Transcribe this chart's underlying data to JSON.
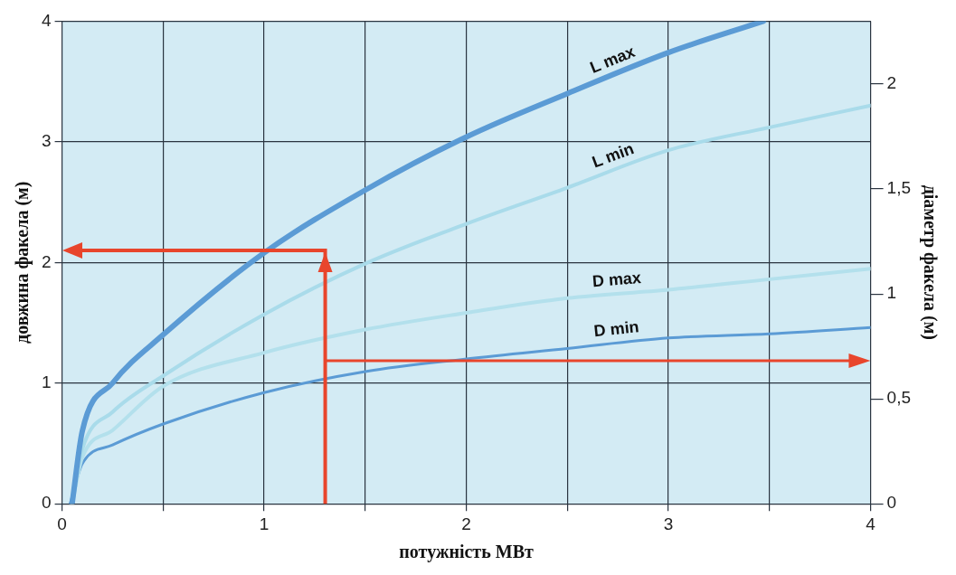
{
  "chart_data": {
    "type": "line",
    "xlabel": "потужність МВт",
    "ylabel": "довжина факела (м)",
    "y2label": "діаметр факела (м)",
    "xlim": [
      0,
      4
    ],
    "xticks": [
      0,
      {
        "value": 0.5,
        "label": null
      },
      1,
      {
        "value": 1.5,
        "label": null
      },
      2,
      {
        "value": 2.5,
        "label": null
      },
      3,
      {
        "value": 3.5,
        "label": null
      },
      4
    ],
    "ylim": [
      0,
      4
    ],
    "yticks": [
      0,
      1,
      2,
      3,
      4
    ],
    "y2lim": [
      0,
      2.3
    ],
    "y2ticks": [
      0,
      {
        "value": 0.5,
        "label": "0,5"
      },
      1,
      {
        "value": 1.5,
        "label": "1,5"
      },
      2
    ],
    "grid": true,
    "legend": false,
    "marker": "none",
    "line_style": "solid",
    "series": [
      {
        "name": "L max",
        "color": "#5b9bd5",
        "x": [
          0.05,
          0.1,
          0.25,
          0.5,
          1,
          1.5,
          2,
          2.5,
          3,
          3.47
        ],
        "values": [
          0,
          0.6,
          1.0,
          1.4,
          2.08,
          2.6,
          3.04,
          3.4,
          3.74,
          4.0
        ]
      },
      {
        "name": "L min",
        "color": "#a9dbea",
        "x": [
          0.05,
          0.1,
          0.25,
          0.5,
          1,
          1.5,
          2,
          2.5,
          3,
          3.5,
          4
        ],
        "values": [
          0,
          0.45,
          0.76,
          1.06,
          1.57,
          1.99,
          2.32,
          2.62,
          2.93,
          3.12,
          3.3
        ]
      },
      {
        "name": "D max",
        "color": "#b3e0ec",
        "axis": "y2",
        "x": [
          0.05,
          0.1,
          0.25,
          0.5,
          1,
          1.5,
          2,
          2.5,
          3,
          3.5,
          4
        ],
        "values": [
          0,
          0.22,
          0.35,
          0.56,
          0.72,
          0.83,
          0.91,
          0.98,
          1.02,
          1.07,
          1.12
        ]
      },
      {
        "name": "D min",
        "color": "#5b9bd5",
        "axis": "y2",
        "x": [
          0.04,
          0.1,
          0.25,
          0.5,
          1,
          1.5,
          2,
          2.5,
          3,
          3.5,
          4
        ],
        "values": [
          0,
          0.19,
          0.28,
          0.38,
          0.53,
          0.63,
          0.69,
          0.74,
          0.79,
          0.81,
          0.84
        ]
      }
    ]
  }
}
